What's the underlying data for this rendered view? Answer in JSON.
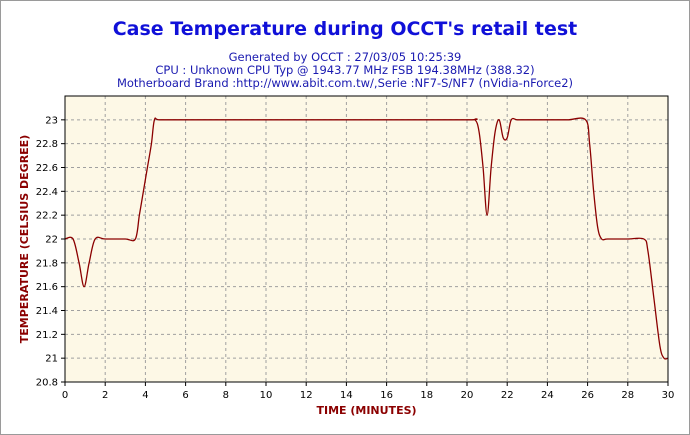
{
  "header": {
    "title": "Case Temperature during OCCT's retail test",
    "line1": "Generated by OCCT : 27/03/05 10:25:39",
    "line2": "CPU : Unknown CPU Typ @ 1943.77 MHz FSB 194.38MHz (388.32)",
    "line3": "Motherboard Brand :http://www.abit.com.tw/,Serie :NF7-S/NF7 (nVidia-nForce2)"
  },
  "colors": {
    "title": "#1010d8",
    "subtitle": "#1a1ab0",
    "plot_bg": "#fdf8e6",
    "grid": "#a0a0a0",
    "line": "#8b0000",
    "axis_label": "#8b0000"
  },
  "chart_data": {
    "type": "line",
    "title": "Case Temperature during OCCT's retail test",
    "xlabel": "Time (minutes)",
    "ylabel": "Temperature (Celsius Degree)",
    "xlim": [
      0,
      30
    ],
    "ylim": [
      20.8,
      23.2
    ],
    "xticks": [
      0,
      2,
      4,
      6,
      8,
      10,
      12,
      14,
      16,
      18,
      20,
      22,
      24,
      26,
      28,
      30
    ],
    "yticks": [
      20.8,
      21,
      21.2,
      21.4,
      21.6,
      21.8,
      22,
      22.2,
      22.4,
      22.6,
      22.8,
      23
    ],
    "grid": true,
    "series": [
      {
        "x": [
          0,
          0.4,
          0.7,
          0.95,
          1.2,
          1.5,
          2.0,
          3.0,
          3.5,
          3.7,
          3.9,
          4.1,
          4.3,
          4.45,
          4.7,
          6,
          10,
          15,
          20,
          20.4,
          20.6,
          20.8,
          21.0,
          21.2,
          21.4,
          21.6,
          21.8,
          22.0,
          22.2,
          22.5,
          23,
          24,
          25,
          25.9,
          26.1,
          26.3,
          26.5,
          26.7,
          27,
          28,
          28.8,
          29.0,
          29.3,
          29.6,
          29.8,
          30.0
        ],
        "y": [
          22.0,
          22.0,
          21.8,
          21.6,
          21.8,
          22.0,
          22.0,
          22.0,
          22.0,
          22.2,
          22.4,
          22.6,
          22.8,
          23.0,
          23.0,
          23.0,
          23.0,
          23.0,
          23.0,
          23.0,
          22.9,
          22.6,
          22.2,
          22.6,
          22.9,
          23.0,
          22.85,
          22.85,
          23.0,
          23.0,
          23.0,
          23.0,
          23.0,
          23.0,
          22.8,
          22.4,
          22.1,
          22.0,
          22.0,
          22.0,
          22.0,
          21.9,
          21.5,
          21.1,
          21.0,
          21.0
        ]
      }
    ]
  }
}
